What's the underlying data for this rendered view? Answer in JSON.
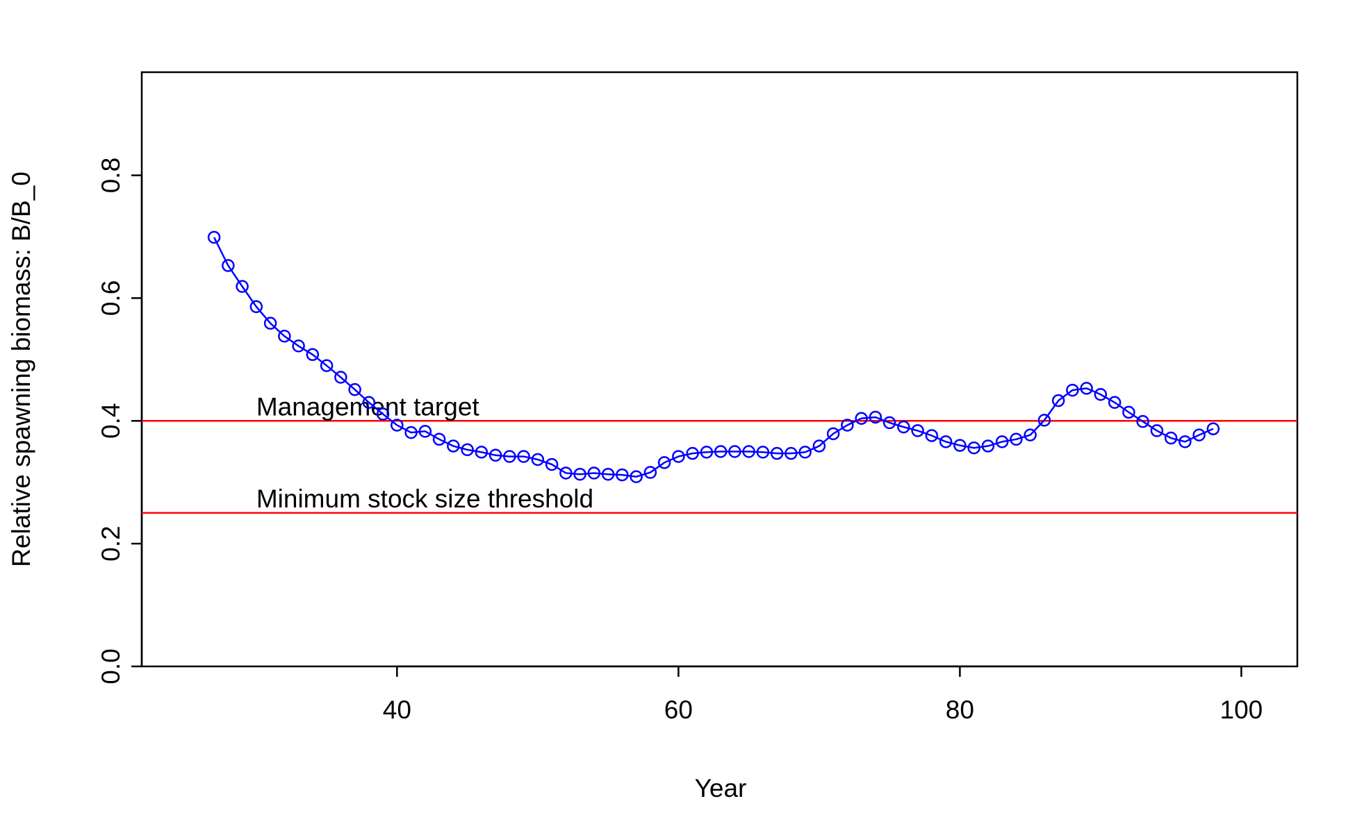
{
  "chart_data": {
    "type": "line",
    "xlabel": "Year",
    "ylabel": "Relative spawning biomass: B/B_0",
    "x": [
      27,
      28,
      29,
      30,
      31,
      32,
      33,
      34,
      35,
      36,
      37,
      38,
      39,
      40,
      41,
      42,
      43,
      44,
      45,
      46,
      47,
      48,
      49,
      50,
      51,
      52,
      53,
      54,
      55,
      56,
      57,
      58,
      59,
      60,
      61,
      62,
      63,
      64,
      65,
      66,
      67,
      68,
      69,
      70,
      71,
      72,
      73,
      74,
      75,
      76,
      77,
      78,
      79,
      80,
      81,
      82,
      83,
      84,
      85,
      86,
      87,
      88,
      89,
      90,
      91,
      92,
      93,
      94,
      95,
      96,
      97,
      98
    ],
    "values": [
      0.699,
      0.653,
      0.619,
      0.586,
      0.559,
      0.538,
      0.522,
      0.508,
      0.49,
      0.471,
      0.451,
      0.43,
      0.411,
      0.393,
      0.381,
      0.383,
      0.37,
      0.359,
      0.353,
      0.349,
      0.344,
      0.342,
      0.342,
      0.337,
      0.329,
      0.315,
      0.313,
      0.315,
      0.313,
      0.312,
      0.309,
      0.316,
      0.332,
      0.342,
      0.347,
      0.349,
      0.35,
      0.35,
      0.35,
      0.349,
      0.347,
      0.347,
      0.349,
      0.359,
      0.379,
      0.393,
      0.404,
      0.406,
      0.397,
      0.39,
      0.384,
      0.376,
      0.366,
      0.36,
      0.356,
      0.359,
      0.366,
      0.37,
      0.377,
      0.401,
      0.433,
      0.45,
      0.453,
      0.443,
      0.43,
      0.414,
      0.399,
      0.384,
      0.372,
      0.366,
      0.377,
      0.387
    ],
    "color": "#0000ff",
    "xlim": [
      21.86,
      103.98
    ],
    "ylim": [
      0,
      0.968
    ],
    "xticks": [
      40,
      60,
      80,
      100
    ],
    "yticks": [
      {
        "value": 0,
        "label": "0.0"
      },
      0.2,
      0.4,
      0.6,
      0.8
    ],
    "reference_lines": [
      {
        "y": 0.4,
        "label": "Management target",
        "label_x": 30,
        "color": "#ff0000"
      },
      {
        "y": 0.25,
        "label": "Minimum stock size threshold",
        "label_x": 30,
        "color": "#ff0000"
      }
    ]
  }
}
